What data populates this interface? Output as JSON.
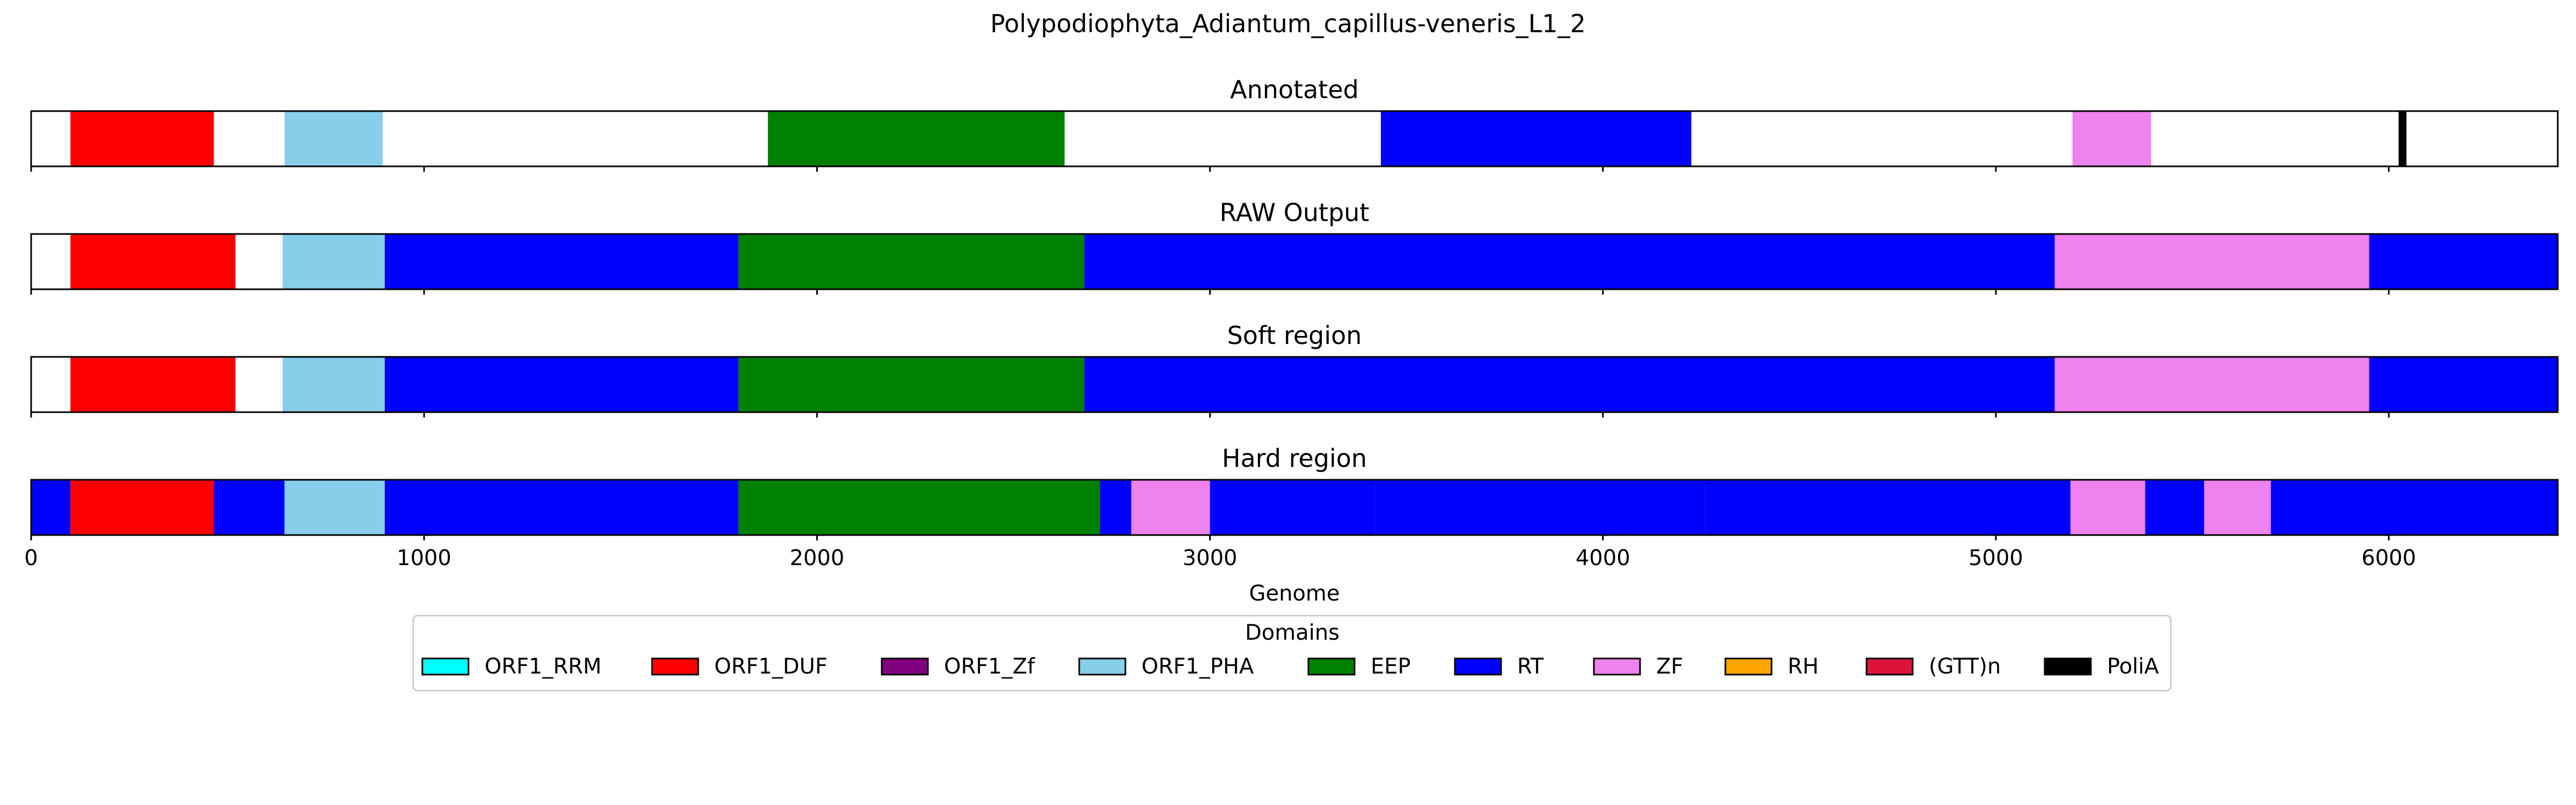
{
  "figure_title": "Polypodiophyta_Adiantum_capillus-veneris_L1_2",
  "chart_data": {
    "type": "genome-track",
    "xlabel": "Genome",
    "xlim": [
      0,
      6430
    ],
    "xticks": [
      0,
      1000,
      2000,
      3000,
      4000,
      5000,
      6000
    ],
    "legend": {
      "title": "Domains",
      "placement": "lower-center",
      "entries": [
        {
          "name": "ORF1_RRM",
          "color": "#00ffff"
        },
        {
          "name": "ORF1_DUF",
          "color": "#ff0000"
        },
        {
          "name": "ORF1_Zf",
          "color": "#800080"
        },
        {
          "name": "ORF1_PHA",
          "color": "#87ceeb"
        },
        {
          "name": "EEP",
          "color": "#008000"
        },
        {
          "name": "RT",
          "color": "#0000ff"
        },
        {
          "name": "ZF",
          "color": "#ee82ee"
        },
        {
          "name": "RH",
          "color": "#ffa500"
        },
        {
          "name": "(GTT)n",
          "color": "#dc143c"
        },
        {
          "name": "PoliA",
          "color": "#000000"
        }
      ]
    },
    "tracks": [
      {
        "title": "Annotated",
        "segments": [
          {
            "domain": "ORF1_DUF",
            "start": 100,
            "end": 465
          },
          {
            "domain": "ORF1_PHA",
            "start": 645,
            "end": 895
          },
          {
            "domain": "EEP",
            "start": 1875,
            "end": 2630
          },
          {
            "domain": "RT",
            "start": 3435,
            "end": 4225
          },
          {
            "domain": "ZF",
            "start": 5195,
            "end": 5395
          },
          {
            "domain": "PoliA",
            "start": 6025,
            "end": 6045
          }
        ]
      },
      {
        "title": "RAW Output",
        "segments": [
          {
            "domain": "ORF1_DUF",
            "start": 100,
            "end": 520
          },
          {
            "domain": "ORF1_PHA",
            "start": 640,
            "end": 900
          },
          {
            "domain": "RT",
            "start": 900,
            "end": 1800
          },
          {
            "domain": "EEP",
            "start": 1800,
            "end": 2680
          },
          {
            "domain": "RT",
            "start": 2680,
            "end": 5150
          },
          {
            "domain": "ZF",
            "start": 5150,
            "end": 5950
          },
          {
            "domain": "RT",
            "start": 5950,
            "end": 6430
          }
        ]
      },
      {
        "title": "Soft region",
        "segments": [
          {
            "domain": "ORF1_DUF",
            "start": 100,
            "end": 520
          },
          {
            "domain": "ORF1_PHA",
            "start": 640,
            "end": 900
          },
          {
            "domain": "RT",
            "start": 900,
            "end": 1800
          },
          {
            "domain": "EEP",
            "start": 1800,
            "end": 2680
          },
          {
            "domain": "RT",
            "start": 2680,
            "end": 5150
          },
          {
            "domain": "ZF",
            "start": 5150,
            "end": 5950
          },
          {
            "domain": "RT",
            "start": 5950,
            "end": 6430
          }
        ]
      },
      {
        "title": "Hard region",
        "segments": [
          {
            "domain": "RT",
            "start": 0,
            "end": 100
          },
          {
            "domain": "ORF1_DUF",
            "start": 100,
            "end": 465
          },
          {
            "domain": "RT",
            "start": 465,
            "end": 645
          },
          {
            "domain": "ORF1_PHA",
            "start": 645,
            "end": 900
          },
          {
            "domain": "RT",
            "start": 900,
            "end": 1800
          },
          {
            "domain": "EEP",
            "start": 1800,
            "end": 2720
          },
          {
            "domain": "RT",
            "start": 2720,
            "end": 2800
          },
          {
            "domain": "ZF",
            "start": 2800,
            "end": 3000
          },
          {
            "domain": "RT",
            "start": 3000,
            "end": 3420
          },
          {
            "domain": "RT",
            "start": 3420,
            "end": 4260
          },
          {
            "domain": "RT",
            "start": 4260,
            "end": 5190
          },
          {
            "domain": "ZF",
            "start": 5190,
            "end": 5380
          },
          {
            "domain": "RT",
            "start": 5380,
            "end": 5530
          },
          {
            "domain": "ZF",
            "start": 5530,
            "end": 5700
          },
          {
            "domain": "RT",
            "start": 5700,
            "end": 6430
          }
        ]
      }
    ]
  }
}
